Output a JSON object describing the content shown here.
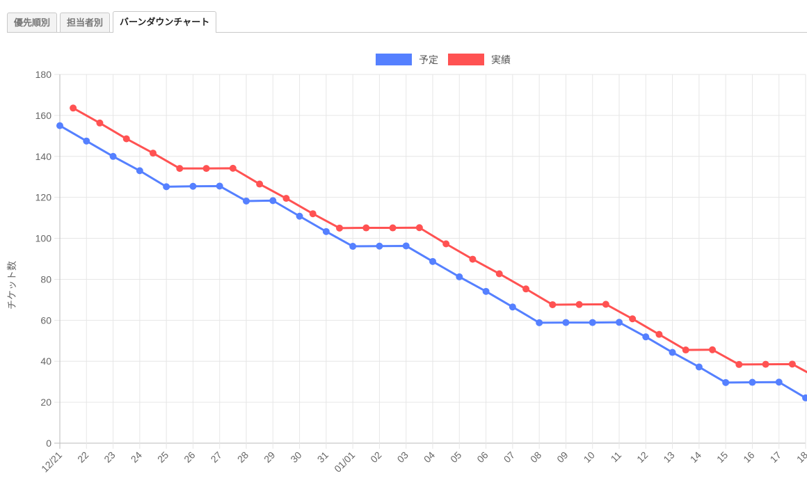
{
  "tabs": [
    {
      "label": "優先順別",
      "active": false
    },
    {
      "label": "担当者別",
      "active": false
    },
    {
      "label": "バーンダウンチャート",
      "active": true
    }
  ],
  "chart_data": {
    "type": "line",
    "ylabel": "チケット数",
    "xlabel": "",
    "ylim": [
      0,
      180
    ],
    "yticks": [
      0,
      20,
      40,
      60,
      80,
      100,
      120,
      140,
      160,
      180
    ],
    "grid": true,
    "legend_position": "top-center",
    "categories": [
      "12/21",
      "22",
      "23",
      "24",
      "25",
      "26",
      "27",
      "28",
      "29",
      "30",
      "31",
      "01/01",
      "02",
      "03",
      "04",
      "05",
      "06",
      "07",
      "08",
      "09",
      "10",
      "11",
      "12",
      "13",
      "14",
      "15",
      "16",
      "17",
      "18"
    ],
    "series": [
      {
        "name": "予定",
        "color": "#5580ff",
        "offset": 0,
        "values": [
          155,
          147.5,
          140,
          133,
          125.2,
          125.4,
          125.5,
          118.2,
          118.4,
          110.8,
          103.3,
          96.1,
          96.2,
          96.3,
          88.7,
          81.2,
          74.1,
          66.5,
          58.8,
          58.9,
          58.9,
          59,
          51.9,
          44.3,
          37.2,
          29.6,
          29.7,
          29.8,
          22.1
        ]
      },
      {
        "name": "実績",
        "color": "#ff5252",
        "offset": 0.5,
        "values": [
          163.6,
          156.3,
          148.6,
          141.6,
          134.1,
          134.1,
          134.2,
          126.5,
          119.5,
          112,
          105,
          105.1,
          105.1,
          105.2,
          97.3,
          89.8,
          82.7,
          75.3,
          67.6,
          67.7,
          67.8,
          60.7,
          53.1,
          45.5,
          45.6,
          38.4,
          38.5,
          38.6,
          31.5
        ]
      }
    ]
  }
}
